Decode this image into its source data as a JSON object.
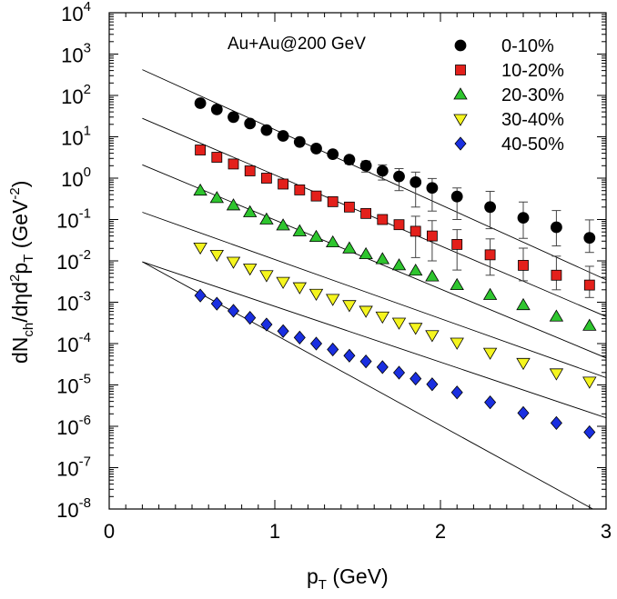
{
  "chart_data": {
    "type": "scatter",
    "title": "",
    "annotation": "Au+Au@200 GeV",
    "xlabel": {
      "main": "p",
      "sub": "T",
      "rest": " (GeV)"
    },
    "ylabel": {
      "p1": "dN",
      "s1": "ch",
      "p2": "/dηd",
      "s2": "2",
      "p3": "p",
      "s3": "T",
      "p4": " (GeV",
      "s4": "-2",
      "p5": ")"
    },
    "xlim": [
      0,
      3
    ],
    "ylim_log10": [
      -8,
      4
    ],
    "x_ticks": [
      {
        "value": 0,
        "label": "0"
      },
      {
        "value": 1,
        "label": "1"
      },
      {
        "value": 2,
        "label": "2"
      },
      {
        "value": 3,
        "label": "3"
      }
    ],
    "y_ticks": [
      {
        "exp": 4,
        "base": "10",
        "sup": "4"
      },
      {
        "exp": 3,
        "base": "10",
        "sup": "3"
      },
      {
        "exp": 2,
        "base": "10",
        "sup": "2"
      },
      {
        "exp": 1,
        "base": "10",
        "sup": "1"
      },
      {
        "exp": 0,
        "base": "10",
        "sup": "0"
      },
      {
        "exp": -1,
        "base": "10",
        "sup": "-1"
      },
      {
        "exp": -2,
        "base": "10",
        "sup": "-2"
      },
      {
        "exp": -3,
        "base": "10",
        "sup": "-3"
      },
      {
        "exp": -4,
        "base": "10",
        "sup": "-4"
      },
      {
        "exp": -5,
        "base": "10",
        "sup": "-5"
      },
      {
        "exp": -6,
        "base": "10",
        "sup": "-6"
      },
      {
        "exp": -7,
        "base": "10",
        "sup": "-7"
      },
      {
        "exp": -8,
        "base": "10",
        "sup": "-8"
      }
    ],
    "x": [
      0.55,
      0.65,
      0.75,
      0.85,
      0.95,
      1.05,
      1.15,
      1.25,
      1.35,
      1.45,
      1.55,
      1.65,
      1.75,
      1.85,
      1.95,
      2.1,
      2.3,
      2.5,
      2.7,
      2.9
    ],
    "series": [
      {
        "name": "0-10%",
        "marker": "circle",
        "color": "#000000",
        "values": [
          65,
          46,
          30,
          21,
          14.5,
          10.5,
          7.5,
          5.2,
          3.8,
          2.8,
          2.0,
          1.5,
          1.1,
          0.8,
          0.58,
          0.36,
          0.2,
          0.11,
          0.065,
          0.036
        ],
        "errors": [
          [
            0.6,
            0.6
          ],
          [
            0.6,
            0.6
          ],
          [
            0.6,
            0.6
          ],
          [
            0.6,
            0.6
          ],
          [
            0.6,
            0.6
          ],
          [
            0.6,
            0.6
          ],
          [
            0.6,
            0.6
          ],
          [
            0.6,
            0.6
          ],
          [
            0.6,
            0.6
          ],
          [
            0.6,
            0.6
          ],
          [
            0.6,
            0.6
          ],
          [
            0.6,
            0.6
          ],
          [
            0.6,
            0.6
          ],
          [
            0.6,
            0.6
          ],
          [
            0.42,
            0.4
          ],
          [
            0.26,
            0.22
          ],
          [
            0.14,
            0.28
          ],
          [
            0.075,
            0.155
          ],
          [
            0.042,
            0.1
          ],
          [
            0.02,
            0.062
          ]
        ]
      },
      {
        "name": "10-20%",
        "marker": "square",
        "color": "#e3201b",
        "values": [
          4.8,
          3.2,
          2.2,
          1.5,
          1.0,
          0.72,
          0.52,
          0.37,
          0.27,
          0.2,
          0.14,
          0.1,
          0.075,
          0.052,
          0.04,
          0.025,
          0.014,
          0.0078,
          0.0045,
          0.0026
        ],
        "errors": [
          [
            null,
            null
          ],
          [
            null,
            null
          ],
          [
            null,
            null
          ],
          [
            null,
            null
          ],
          [
            null,
            null
          ],
          [
            null,
            null
          ],
          [
            null,
            null
          ],
          [
            null,
            null
          ],
          [
            null,
            null
          ],
          [
            null,
            null
          ],
          [
            null,
            null
          ],
          [
            null,
            null
          ],
          [
            null,
            null
          ],
          [
            0.04,
            0.068
          ],
          [
            0.03,
            0.054
          ],
          [
            0.019,
            0.032
          ],
          [
            0.0095,
            0.02
          ],
          [
            0.0045,
            0.0125
          ],
          [
            0.0025,
            0.0085
          ],
          [
            0.0013,
            0.0048
          ]
        ]
      },
      {
        "name": "20-30%",
        "marker": "triangle-up",
        "color": "#2ec52e",
        "values": [
          0.5,
          0.33,
          0.22,
          0.15,
          0.1,
          0.072,
          0.052,
          0.038,
          0.028,
          0.02,
          0.0145,
          0.011,
          0.0078,
          0.0058,
          0.0042,
          0.0026,
          0.0015,
          0.00085,
          0.00045,
          0.00027
        ]
      },
      {
        "name": "30-40%",
        "marker": "triangle-down",
        "color": "#f5f51f",
        "values": [
          0.021,
          0.014,
          0.0095,
          0.0065,
          0.0045,
          0.0031,
          0.0023,
          0.0016,
          0.0012,
          0.00085,
          0.00062,
          0.00045,
          0.00032,
          0.00024,
          0.00016,
          0.000105,
          6e-05,
          3.4e-05,
          1.9e-05,
          1.2e-05
        ]
      },
      {
        "name": "40-50%",
        "marker": "diamond",
        "color": "#1a2fe0",
        "values": [
          0.00145,
          0.00092,
          0.00062,
          0.00042,
          0.00029,
          0.0002,
          0.00014,
          0.0001,
          7.2e-05,
          5.1e-05,
          3.7e-05,
          2.7e-05,
          1.98e-05,
          1.42e-05,
          1.04e-05,
          6.6e-06,
          3.8e-06,
          2.1e-06,
          1.2e-06,
          7.2e-07
        ]
      }
    ],
    "fit_lines": [
      {
        "x": [
          0.2,
          3.0
        ],
        "y": [
          420,
          0.0035
        ]
      },
      {
        "x": [
          0.2,
          3.0
        ],
        "y": [
          28,
          0.00045
        ]
      },
      {
        "x": [
          0.2,
          3.0
        ],
        "y": [
          2.1,
          4.5e-05
        ]
      },
      {
        "x": [
          0.2,
          3.0
        ],
        "y": [
          0.15,
          1.5e-05
        ]
      },
      {
        "x": [
          0.2,
          3.0
        ],
        "y": [
          0.0095,
          1.6e-06
        ]
      },
      {
        "x": [
          0.2,
          2.92
        ],
        "y": [
          0.0095,
          1e-08
        ]
      }
    ],
    "fit_line_color": "#000000",
    "legend_position": "top-right",
    "grid": false
  }
}
